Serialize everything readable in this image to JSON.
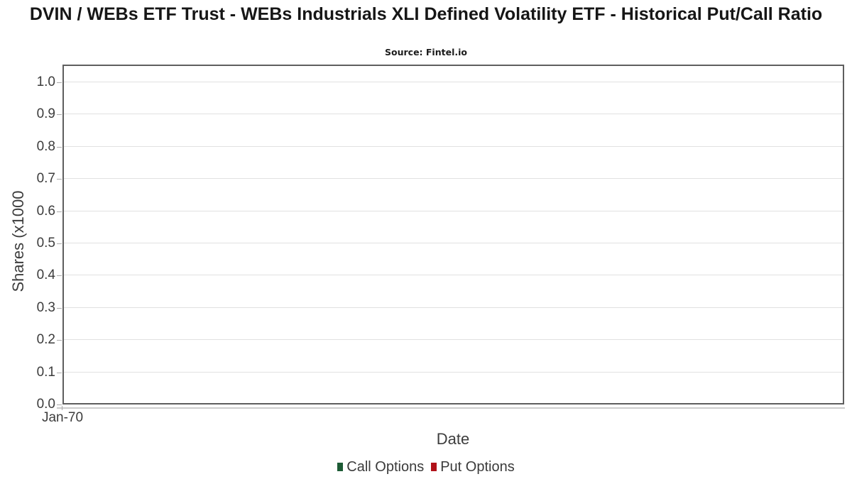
{
  "title": "DVIN / WEBs ETF Trust - WEBs Industrials XLI Defined Volatility ETF - Historical Put/Call Ratio",
  "subtitle": "Source: Fintel.io",
  "chart_data": {
    "type": "line",
    "title": "DVIN / WEBs ETF Trust - WEBs Industrials XLI Defined Volatility ETF - Historical Put/Call Ratio",
    "subtitle": "Source: Fintel.io",
    "xlabel": "Date",
    "ylabel": "Shares (x1000",
    "xticks": [
      "Jan-70"
    ],
    "yticks": [
      "0.0",
      "0.1",
      "0.2",
      "0.3",
      "0.4",
      "0.5",
      "0.6",
      "0.7",
      "0.8",
      "0.9",
      "1.0"
    ],
    "ylim": [
      0.0,
      1.0
    ],
    "grid": true,
    "legend_position": "bottom",
    "series": [
      {
        "name": "Call Options",
        "color": "#1d5b35",
        "x": [],
        "values": []
      },
      {
        "name": "Put Options",
        "color": "#b1121a",
        "x": [],
        "values": []
      }
    ],
    "note": "empty plot area - no data points rendered"
  },
  "legend": {
    "items": [
      {
        "label": "Call Options",
        "color": "#1d5b35"
      },
      {
        "label": "Put Options",
        "color": "#b1121a"
      }
    ]
  },
  "colors": {
    "plot_border": "#5e5e5e",
    "gridline": "#e1e1e1",
    "axis_line": "#cdcdcd",
    "tick_text": "#3c3c3c",
    "title_text": "#161616"
  }
}
